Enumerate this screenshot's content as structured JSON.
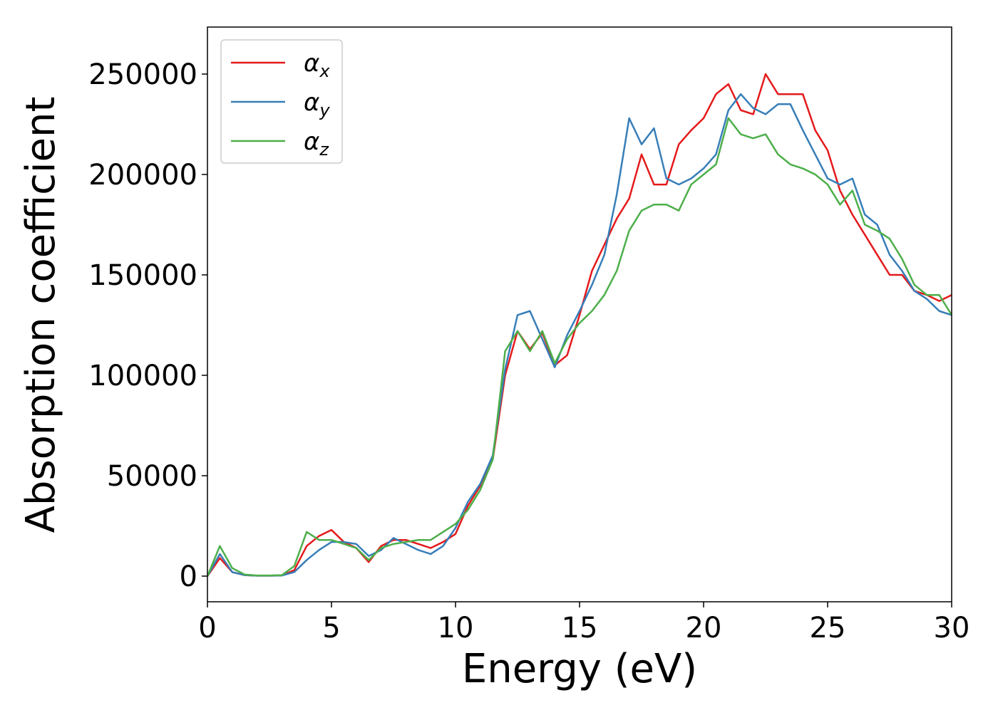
{
  "chart_data": {
    "type": "line",
    "xlabel": "Energy (eV)",
    "ylabel": "Absorption coefficient",
    "x": [
      0,
      0.5,
      1,
      1.5,
      2,
      2.5,
      3,
      3.5,
      4,
      4.5,
      5,
      5.5,
      6,
      6.5,
      7,
      7.5,
      8,
      8.5,
      9,
      9.5,
      10,
      10.5,
      11,
      11.5,
      12,
      12.5,
      13,
      13.5,
      14,
      14.5,
      15,
      15.5,
      16,
      16.5,
      17,
      17.5,
      18,
      18.5,
      19,
      19.5,
      20,
      20.5,
      21,
      21.5,
      22,
      22.5,
      23,
      23.5,
      24,
      24.5,
      25,
      25.5,
      26,
      26.5,
      27,
      27.5,
      28,
      28.5,
      29,
      29.5,
      30
    ],
    "series": [
      {
        "name": "αx",
        "color": "#e41a1c",
        "values": [
          0,
          9000,
          2000,
          500,
          200,
          200,
          300,
          3000,
          15000,
          20000,
          23000,
          17000,
          14000,
          7000,
          15000,
          18000,
          18000,
          16000,
          14000,
          17000,
          21000,
          35000,
          45000,
          58000,
          100000,
          122000,
          113000,
          121000,
          105000,
          110000,
          130000,
          152000,
          165000,
          178000,
          188000,
          210000,
          195000,
          195000,
          215000,
          222000,
          228000,
          240000,
          245000,
          232000,
          230000,
          250000,
          240000,
          240000,
          240000,
          222000,
          212000,
          192000,
          180000,
          170000,
          160000,
          150000,
          150000,
          142000,
          140000,
          137000,
          140000
        ]
      },
      {
        "name": "αy",
        "color": "#377eb8",
        "values": [
          0,
          11000,
          2000,
          500,
          200,
          200,
          300,
          2000,
          8000,
          13000,
          17000,
          17000,
          16000,
          10000,
          13000,
          19000,
          16000,
          13000,
          11000,
          15000,
          24000,
          37000,
          46000,
          60000,
          103000,
          130000,
          132000,
          118000,
          104000,
          120000,
          132000,
          145000,
          160000,
          190000,
          228000,
          215000,
          223000,
          198000,
          195000,
          198000,
          203000,
          210000,
          232000,
          240000,
          233000,
          230000,
          235000,
          235000,
          222000,
          210000,
          198000,
          195000,
          198000,
          180000,
          175000,
          160000,
          152000,
          142000,
          138000,
          132000,
          130000
        ]
      },
      {
        "name": "αz",
        "color": "#4daf4a",
        "values": [
          0,
          15000,
          4000,
          800,
          300,
          300,
          500,
          5000,
          22000,
          18000,
          18000,
          16000,
          14000,
          8000,
          14000,
          16000,
          17000,
          18000,
          18000,
          22000,
          26000,
          33000,
          43000,
          58000,
          112000,
          122000,
          112000,
          122000,
          106000,
          118000,
          126000,
          132000,
          140000,
          152000,
          172000,
          182000,
          185000,
          185000,
          182000,
          195000,
          200000,
          205000,
          228000,
          220000,
          218000,
          220000,
          210000,
          205000,
          203000,
          200000,
          195000,
          185000,
          192000,
          175000,
          172000,
          168000,
          158000,
          145000,
          140000,
          140000,
          130000
        ]
      }
    ],
    "xlim": [
      0,
      30
    ],
    "xticks": [
      0,
      5,
      10,
      15,
      20,
      25,
      30
    ],
    "ylim": [
      -12770,
      273400
    ],
    "yticks": [
      0,
      50000,
      100000,
      150000,
      200000,
      250000
    ],
    "legend": "upper left"
  }
}
